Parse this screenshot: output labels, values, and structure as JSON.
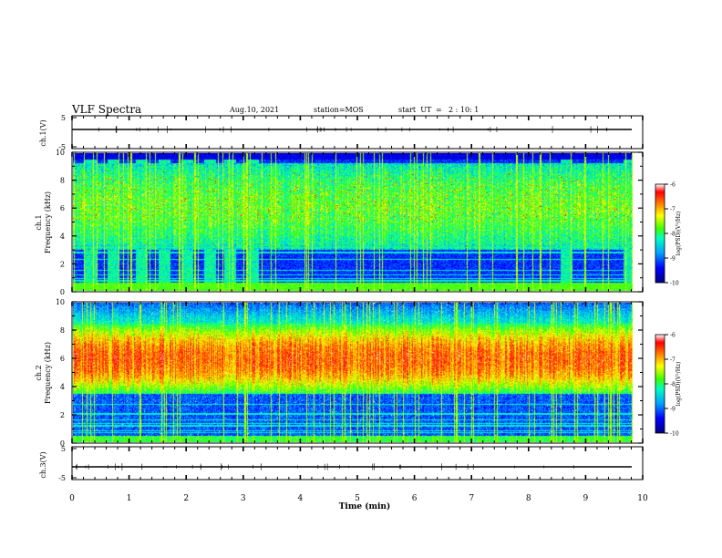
{
  "header": {
    "title": "VLF Spectra",
    "date": "Aug.10, 2021",
    "station": "station=MOS",
    "start_label": "start  UT",
    "start_eq": "=",
    "start_value": "2 : 10: 1"
  },
  "chart_data": [
    {
      "type": "line",
      "name": "ch1-waveform",
      "ylabel": "ch.1(V)",
      "ylim": [
        -5,
        5
      ],
      "y_ticks": [
        "5",
        "-5"
      ],
      "xlim": [
        0,
        10
      ],
      "level": 0
    },
    {
      "type": "heatmap",
      "name": "ch1-spectrogram",
      "ylabel_line1": "ch.1",
      "ylabel_line2": "Frequency (kHz)",
      "ylim": [
        0,
        10
      ],
      "y_ticks": [
        "0",
        "2",
        "4",
        "6",
        "8",
        "10"
      ],
      "xlim": [
        0,
        9.85
      ],
      "emission_band_khz": [
        3,
        9.3
      ],
      "burst_times_min": [
        0.3,
        0.7,
        1.2,
        1.6,
        2.0,
        2.4,
        2.75,
        3.15,
        8.65,
        9.75
      ],
      "colorbar": {
        "label": "log(PSD)(V²/Hz)",
        "ticks": [
          "-6",
          "-7",
          "-8",
          "-9",
          "-10"
        ],
        "range": [
          -10,
          -6
        ]
      }
    },
    {
      "type": "heatmap",
      "name": "ch2-spectrogram",
      "ylabel_line1": "ch.2",
      "ylabel_line2": "Frequency (kHz)",
      "ylim": [
        0,
        10
      ],
      "y_ticks": [
        "0",
        "2",
        "4",
        "6",
        "8",
        "10"
      ],
      "xlim": [
        0,
        9.85
      ],
      "emission_band_khz": [
        3.5,
        8.5
      ],
      "colorbar": {
        "label": "log(PSD)(V²/Hz)",
        "ticks": [
          "-6",
          "-7",
          "-8",
          "-9",
          "-10"
        ],
        "range": [
          -10,
          -6
        ]
      }
    },
    {
      "type": "line",
      "name": "ch3-waveform",
      "ylabel": "ch.3(V)",
      "ylim": [
        -5,
        5
      ],
      "y_ticks": [
        "5",
        "-5"
      ],
      "xlim": [
        0,
        10
      ],
      "level": 0
    }
  ],
  "x_axis": {
    "label": "Time  (min)",
    "range": [
      0,
      10
    ],
    "ticks": [
      "0",
      "1",
      "2",
      "3",
      "4",
      "5",
      "6",
      "7",
      "8",
      "9",
      "10"
    ]
  },
  "colors": {
    "colormap": [
      "#000080",
      "#0000ff",
      "#00a0ff",
      "#00ffc0",
      "#40ff00",
      "#ffff00",
      "#ff8000",
      "#ff0000",
      "#ffffff"
    ]
  }
}
